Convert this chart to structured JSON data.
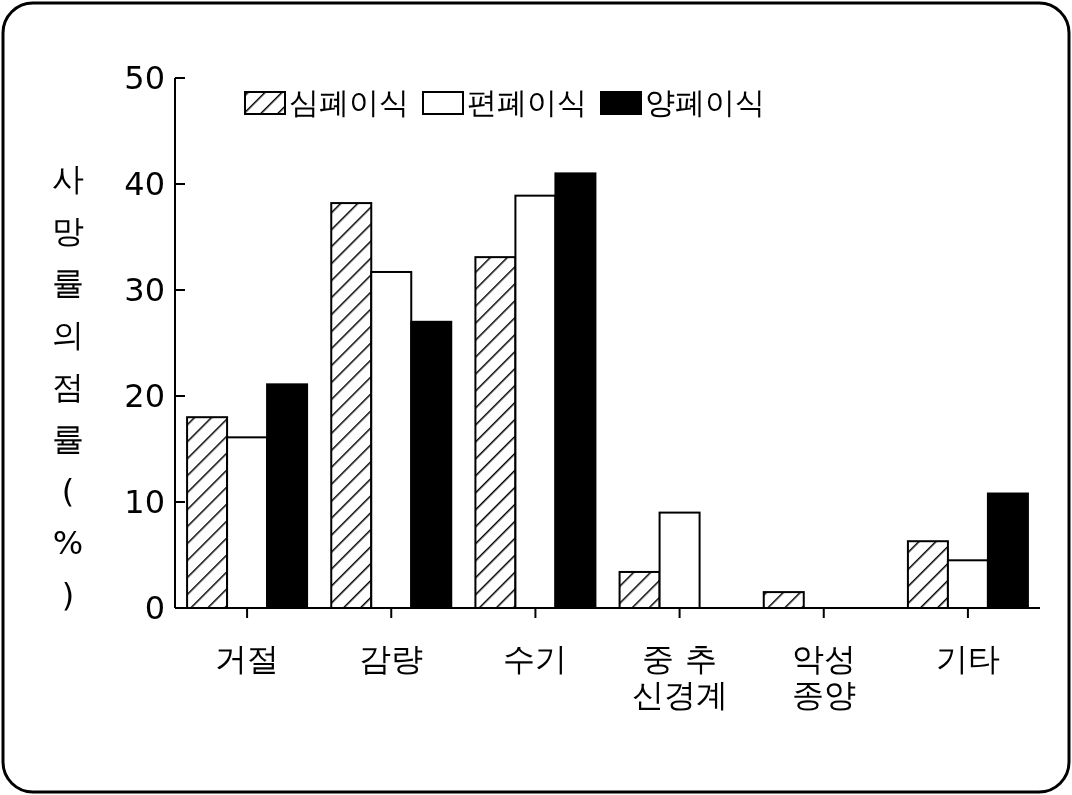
{
  "chart_data": {
    "type": "bar",
    "ylabel": "사망률의 점률(%)",
    "categories": [
      "거절",
      "감량",
      "수기",
      "중 추\n신경계",
      "악성\n종양",
      "기타"
    ],
    "series": [
      {
        "name": "심폐이식",
        "color": "#000000",
        "values": [
          18.0,
          38.2,
          33.1,
          3.4,
          1.5,
          6.3
        ]
      },
      {
        "name": "편폐이식",
        "color": "#ffffff",
        "values": [
          16.1,
          31.7,
          38.9,
          9.0,
          0,
          4.5
        ]
      },
      {
        "name": "양폐이식",
        "color": "#000000",
        "values": [
          21.1,
          27.0,
          41.0,
          0,
          0,
          10.8
        ]
      }
    ],
    "ylim": [
      0,
      50
    ],
    "yticks": [
      0,
      10,
      20,
      30,
      40,
      50
    ],
    "grid": false,
    "legend": "top"
  }
}
